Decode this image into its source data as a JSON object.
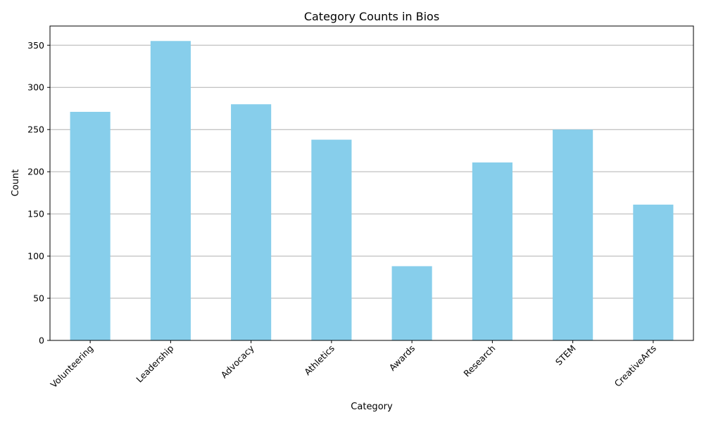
{
  "chart_data": {
    "type": "bar",
    "title": "Category Counts in Bios",
    "xlabel": "Category",
    "ylabel": "Count",
    "categories": [
      "Volunteering",
      "Leadership",
      "Advocacy",
      "Athletics",
      "Awards",
      "Research",
      "STEM",
      "CreativeArts"
    ],
    "values": [
      271,
      355,
      280,
      238,
      88,
      211,
      250,
      161
    ],
    "ylim": [
      0,
      372.75
    ],
    "yticks": [
      0,
      50,
      100,
      150,
      200,
      250,
      300,
      350
    ],
    "grid": "horizontal",
    "legend": "none",
    "bar_color": "#87ceeb",
    "grid_color": "#b0b0b0"
  }
}
